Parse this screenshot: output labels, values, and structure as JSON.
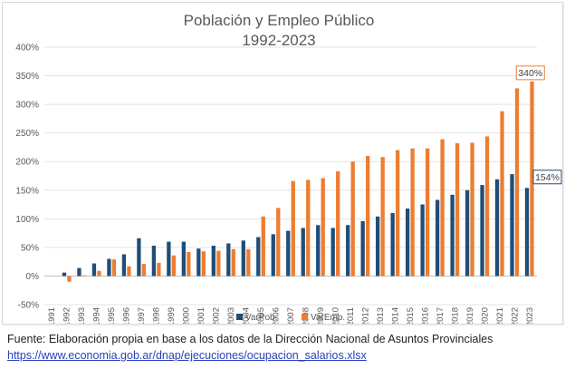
{
  "chart_data": {
    "type": "bar",
    "title": [
      "Población y Empleo Público",
      "1992-2023"
    ],
    "categories": [
      "1991",
      "1992",
      "1993",
      "1994",
      "1995",
      "1996",
      "1997",
      "1998",
      "1999",
      "2000",
      "2001",
      "2002",
      "2003",
      "2004",
      "2005",
      "2006",
      "2007",
      "2008",
      "2009",
      "2010",
      "2011",
      "2012",
      "2013",
      "2014",
      "2015",
      "2016",
      "2017",
      "2018",
      "2019",
      "2020",
      "2021",
      "2022",
      "2023"
    ],
    "series": [
      {
        "name": "VarPob.",
        "color": "#1f4e79",
        "values": [
          0,
          6,
          14,
          22,
          30,
          38,
          66,
          53,
          60,
          60,
          48,
          53,
          57,
          62,
          68,
          73,
          79,
          84,
          89,
          84,
          89,
          96,
          104,
          110,
          118,
          125,
          133,
          142,
          150,
          159,
          169,
          178,
          154
        ]
      },
      {
        "name": "VarEmp.",
        "color": "#ed7d31",
        "values": [
          0,
          -10,
          1,
          9,
          29,
          17,
          21,
          23,
          36,
          42,
          43,
          44,
          47,
          47,
          104,
          119,
          166,
          168,
          171,
          183,
          200,
          210,
          208,
          220,
          223,
          223,
          239,
          232,
          233,
          244,
          288,
          328,
          340
        ]
      }
    ],
    "yticks": [
      "-50%",
      "0%",
      "50%",
      "100%",
      "150%",
      "200%",
      "250%",
      "300%",
      "350%",
      "400%"
    ],
    "ylim": [
      -50,
      400
    ],
    "grid": true,
    "legend": "bottom",
    "data_labels": [
      {
        "series": "VarEmp.",
        "category": "2023",
        "text": "340%"
      },
      {
        "series": "VarPob.",
        "category": "2023",
        "text": "154%"
      }
    ]
  },
  "source": {
    "text": "Fuente: Elaboración propia en base a los datos de la Dirección Nacional de Asuntos Provinciales",
    "link": "https://www.economia.gob.ar/dnap/ejecuciones/ocupacion_salarios.xlsx"
  }
}
